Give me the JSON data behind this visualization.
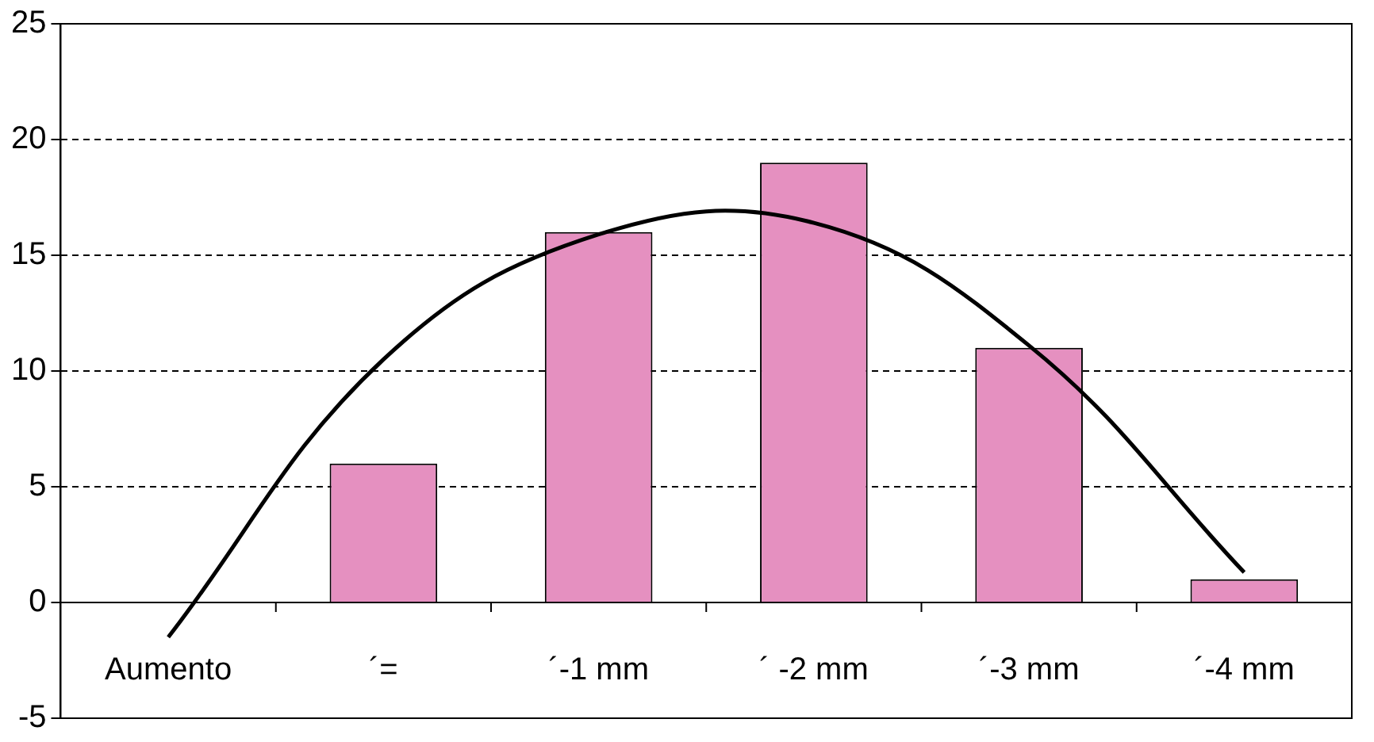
{
  "chart_data": {
    "type": "bar",
    "categories": [
      "Aumento",
      "´=",
      "´-1 mm",
      "´ -2 mm",
      "´-3 mm",
      "´-4 mm"
    ],
    "series": [
      {
        "color": "#e590c0",
        "values": [
          null,
          6,
          16,
          19,
          11,
          1
        ]
      },
      {
        "type": "line",
        "color": "#000000",
        "values": [
          -1.5,
          10.5,
          15.9,
          16.4,
          11.1,
          1.3
        ],
        "marker": "none"
      }
    ],
    "ylim": [
      -5,
      25
    ],
    "yticks": [
      -5,
      0,
      5,
      10,
      15,
      20,
      25
    ],
    "grid": "y",
    "legend": false
  }
}
